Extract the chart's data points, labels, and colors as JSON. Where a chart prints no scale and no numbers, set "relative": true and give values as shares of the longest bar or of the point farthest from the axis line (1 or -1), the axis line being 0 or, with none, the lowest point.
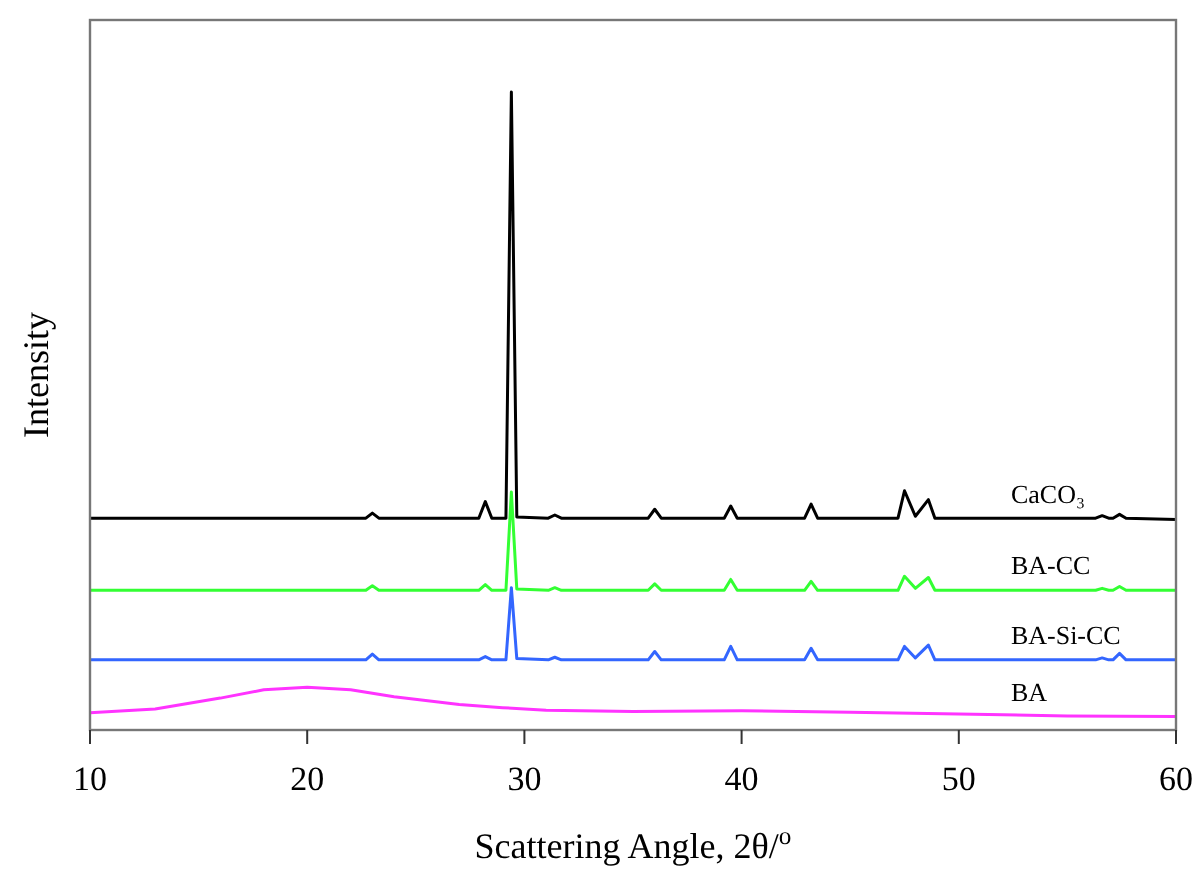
{
  "chart_data": {
    "type": "line",
    "xlabel": "Scattering Angle, 2θ/$^{o}$",
    "ylabel": "Intensity",
    "relative": true,
    "tick_labels": "x",
    "marker": "none",
    "line_style": "solid",
    "xlim": [
      10,
      60
    ],
    "xticks": [
      10,
      20,
      30,
      40,
      50,
      60
    ],
    "series": [
      {
        "name": "CaCO₃",
        "color": "#000000",
        "x": [
          10,
          22.7,
          23.0,
          23.3,
          27.9,
          28.2,
          28.5,
          29.15,
          29.4,
          29.65,
          31.1,
          31.4,
          31.7,
          35.7,
          36.0,
          36.3,
          39.2,
          39.5,
          39.8,
          42.9,
          43.2,
          43.5,
          47.2,
          47.5,
          48.0,
          48.6,
          48.9,
          56.3,
          56.6,
          56.9,
          57.1,
          57.4,
          57.7,
          60
        ],
        "values": [
          0.332,
          0.332,
          0.34,
          0.332,
          0.332,
          0.358,
          0.332,
          0.332,
          1.0,
          0.334,
          0.332,
          0.337,
          0.332,
          0.332,
          0.346,
          0.332,
          0.332,
          0.351,
          0.332,
          0.332,
          0.354,
          0.332,
          0.332,
          0.375,
          0.335,
          0.361,
          0.332,
          0.332,
          0.336,
          0.332,
          0.332,
          0.338,
          0.332,
          0.33
        ]
      },
      {
        "name": "BA-CC",
        "color": "#33ff33",
        "x": [
          10,
          22.7,
          23.0,
          23.3,
          27.9,
          28.2,
          28.5,
          29.15,
          29.4,
          29.65,
          31.1,
          31.4,
          31.7,
          35.7,
          36.0,
          36.3,
          39.2,
          39.5,
          39.8,
          42.9,
          43.2,
          43.5,
          47.2,
          47.5,
          48.0,
          48.6,
          48.9,
          56.3,
          56.6,
          56.9,
          57.1,
          57.4,
          57.7,
          60
        ],
        "values": [
          0.219,
          0.219,
          0.226,
          0.219,
          0.219,
          0.228,
          0.219,
          0.219,
          0.373,
          0.221,
          0.219,
          0.223,
          0.219,
          0.219,
          0.229,
          0.219,
          0.219,
          0.236,
          0.219,
          0.219,
          0.233,
          0.219,
          0.219,
          0.241,
          0.222,
          0.239,
          0.219,
          0.219,
          0.222,
          0.219,
          0.219,
          0.225,
          0.219,
          0.219
        ]
      },
      {
        "name": "BA-Si-CC",
        "color": "#3366ff",
        "x": [
          10,
          22.7,
          23.0,
          23.3,
          27.9,
          28.2,
          28.5,
          29.15,
          29.4,
          29.65,
          31.1,
          31.4,
          31.7,
          35.7,
          36.0,
          36.3,
          39.2,
          39.5,
          39.8,
          42.9,
          43.2,
          43.5,
          47.2,
          47.5,
          48.0,
          48.6,
          48.9,
          56.3,
          56.6,
          56.9,
          57.1,
          57.4,
          57.7,
          60
        ],
        "values": [
          0.11,
          0.11,
          0.119,
          0.11,
          0.11,
          0.115,
          0.11,
          0.11,
          0.223,
          0.112,
          0.11,
          0.114,
          0.11,
          0.11,
          0.123,
          0.11,
          0.11,
          0.131,
          0.11,
          0.11,
          0.128,
          0.11,
          0.11,
          0.131,
          0.113,
          0.133,
          0.11,
          0.11,
          0.113,
          0.11,
          0.11,
          0.12,
          0.11,
          0.11
        ]
      },
      {
        "name": "BA",
        "color": "#ff33ff",
        "x": [
          10,
          13,
          16,
          18,
          20,
          22,
          24,
          27,
          29,
          31,
          35,
          40,
          45,
          50,
          55,
          60
        ],
        "values": [
          0.027,
          0.033,
          0.05,
          0.063,
          0.067,
          0.063,
          0.052,
          0.04,
          0.035,
          0.031,
          0.029,
          0.03,
          0.028,
          0.025,
          0.022,
          0.021
        ]
      }
    ]
  }
}
